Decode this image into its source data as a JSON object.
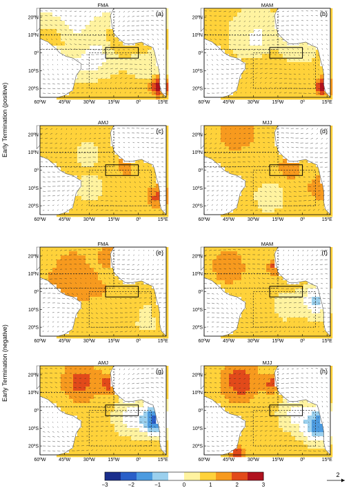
{
  "row_labels": [
    "Early Termination (positive)",
    "Early Termination (negative)"
  ],
  "panels": [
    {
      "season": "FMA",
      "tag": "(a)",
      "pattern": "pos_fma"
    },
    {
      "season": "MAM",
      "tag": "(b)",
      "pattern": "pos_mam"
    },
    {
      "season": "AMJ",
      "tag": "(c)",
      "pattern": "pos_amj"
    },
    {
      "season": "MJJ",
      "tag": "(d)",
      "pattern": "pos_mjj"
    },
    {
      "season": "FMA",
      "tag": "(e)",
      "pattern": "neg_fma"
    },
    {
      "season": "MAM",
      "tag": "(f)",
      "pattern": "neg_mam"
    },
    {
      "season": "AMJ",
      "tag": "(g)",
      "pattern": "neg_amj"
    },
    {
      "season": "MJJ",
      "tag": "(h)",
      "pattern": "neg_mjj"
    }
  ],
  "lat_ticks": [
    "20ºN",
    "10ºN",
    "0º",
    "10ºS",
    "20ºS"
  ],
  "lon_ticks": [
    "60ºW",
    "45ºW",
    "30ºW",
    "15ºW",
    "0º",
    "15ºE"
  ],
  "colorbar": {
    "ticks": [
      "−3",
      "−2",
      "−1",
      "0",
      "1",
      "2",
      "3"
    ],
    "range": [
      -3,
      3
    ],
    "colors": [
      "#1a2e8c",
      "#2a5fc8",
      "#4c9be0",
      "#9bd0ee",
      "#ffffff",
      "#fff3a0",
      "#ffd23a",
      "#f79a1e",
      "#e24a1a",
      "#b0121e"
    ]
  },
  "reference_vector": {
    "label": "2"
  }
}
